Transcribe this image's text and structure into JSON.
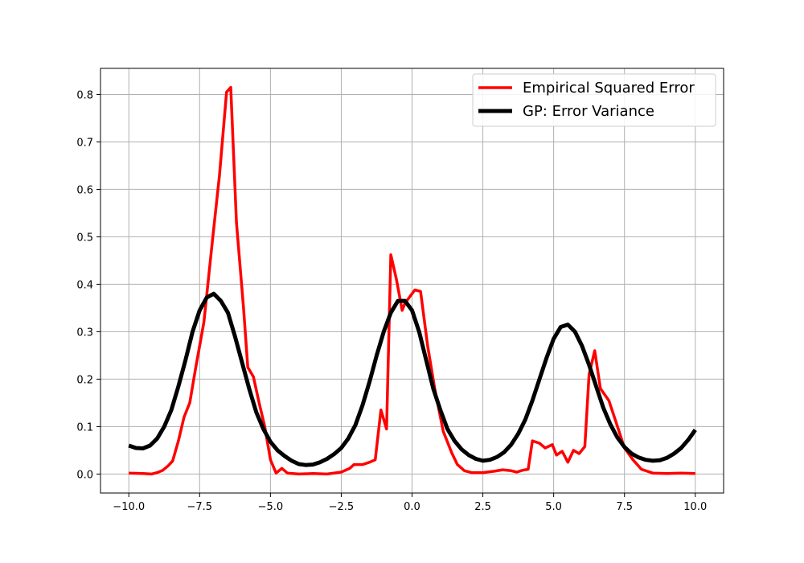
{
  "chart_data": {
    "type": "line",
    "title": "",
    "xlabel": "",
    "ylabel": "",
    "xlim": [
      -11,
      11
    ],
    "ylim": [
      -0.04,
      0.855
    ],
    "grid": true,
    "legend_position": "top-right",
    "xticks": [
      {
        "value": -10,
        "label": "−10.0"
      },
      {
        "value": -7.5,
        "label": "−7.5"
      },
      {
        "value": -5,
        "label": "−5.0"
      },
      {
        "value": -2.5,
        "label": "−2.5"
      },
      {
        "value": 0,
        "label": "0.0"
      },
      {
        "value": 2.5,
        "label": "2.5"
      },
      {
        "value": 5,
        "label": "5.0"
      },
      {
        "value": 7.5,
        "label": "7.5"
      },
      {
        "value": 10,
        "label": "10.0"
      }
    ],
    "yticks": [
      {
        "value": 0.0,
        "label": "0.0"
      },
      {
        "value": 0.1,
        "label": "0.1"
      },
      {
        "value": 0.2,
        "label": "0.2"
      },
      {
        "value": 0.3,
        "label": "0.3"
      },
      {
        "value": 0.4,
        "label": "0.4"
      },
      {
        "value": 0.5,
        "label": "0.5"
      },
      {
        "value": 0.6,
        "label": "0.6"
      },
      {
        "value": 0.7,
        "label": "0.7"
      },
      {
        "value": 0.8,
        "label": "0.8"
      }
    ],
    "series": [
      {
        "name": "Empirical Squared Error",
        "color": "#ff0000",
        "points": [
          [
            -10.0,
            0.002
          ],
          [
            -9.5,
            0.001
          ],
          [
            -9.2,
            0.0
          ],
          [
            -9.0,
            0.003
          ],
          [
            -8.8,
            0.008
          ],
          [
            -8.6,
            0.018
          ],
          [
            -8.45,
            0.028
          ],
          [
            -8.25,
            0.07
          ],
          [
            -8.05,
            0.12
          ],
          [
            -7.85,
            0.15
          ],
          [
            -7.65,
            0.22
          ],
          [
            -7.35,
            0.32
          ],
          [
            -7.05,
            0.49
          ],
          [
            -6.8,
            0.63
          ],
          [
            -6.55,
            0.805
          ],
          [
            -6.4,
            0.815
          ],
          [
            -6.2,
            0.53
          ],
          [
            -5.95,
            0.35
          ],
          [
            -5.8,
            0.225
          ],
          [
            -5.6,
            0.205
          ],
          [
            -5.4,
            0.15
          ],
          [
            -5.2,
            0.1
          ],
          [
            -5.0,
            0.03
          ],
          [
            -4.8,
            0.002
          ],
          [
            -4.6,
            0.012
          ],
          [
            -4.4,
            0.002
          ],
          [
            -4.0,
            0.0
          ],
          [
            -3.5,
            0.001
          ],
          [
            -3.0,
            0.0
          ],
          [
            -2.5,
            0.004
          ],
          [
            -2.2,
            0.012
          ],
          [
            -2.05,
            0.02
          ],
          [
            -1.75,
            0.02
          ],
          [
            -1.5,
            0.025
          ],
          [
            -1.3,
            0.03
          ],
          [
            -1.1,
            0.135
          ],
          [
            -0.9,
            0.095
          ],
          [
            -0.75,
            0.462
          ],
          [
            -0.55,
            0.41
          ],
          [
            -0.35,
            0.345
          ],
          [
            -0.25,
            0.36
          ],
          [
            0.1,
            0.388
          ],
          [
            0.3,
            0.385
          ],
          [
            0.55,
            0.27
          ],
          [
            0.8,
            0.18
          ],
          [
            1.1,
            0.09
          ],
          [
            1.4,
            0.045
          ],
          [
            1.6,
            0.02
          ],
          [
            1.85,
            0.007
          ],
          [
            2.1,
            0.003
          ],
          [
            2.5,
            0.003
          ],
          [
            2.9,
            0.006
          ],
          [
            3.2,
            0.009
          ],
          [
            3.5,
            0.007
          ],
          [
            3.7,
            0.004
          ],
          [
            3.9,
            0.008
          ],
          [
            4.1,
            0.01
          ],
          [
            4.25,
            0.07
          ],
          [
            4.5,
            0.065
          ],
          [
            4.7,
            0.055
          ],
          [
            4.95,
            0.062
          ],
          [
            5.1,
            0.04
          ],
          [
            5.3,
            0.048
          ],
          [
            5.5,
            0.025
          ],
          [
            5.7,
            0.05
          ],
          [
            5.9,
            0.043
          ],
          [
            6.1,
            0.058
          ],
          [
            6.25,
            0.21
          ],
          [
            6.45,
            0.26
          ],
          [
            6.65,
            0.18
          ],
          [
            6.95,
            0.155
          ],
          [
            7.2,
            0.11
          ],
          [
            7.5,
            0.055
          ],
          [
            7.8,
            0.03
          ],
          [
            8.1,
            0.01
          ],
          [
            8.5,
            0.002
          ],
          [
            9.0,
            0.001
          ],
          [
            9.5,
            0.002
          ],
          [
            10.0,
            0.001
          ]
        ]
      },
      {
        "name": "GP: Error Variance",
        "color": "#000000",
        "points": [
          [
            -10.0,
            0.06
          ],
          [
            -9.75,
            0.055
          ],
          [
            -9.5,
            0.054
          ],
          [
            -9.25,
            0.06
          ],
          [
            -9.0,
            0.075
          ],
          [
            -8.75,
            0.1
          ],
          [
            -8.5,
            0.135
          ],
          [
            -8.25,
            0.185
          ],
          [
            -8.0,
            0.24
          ],
          [
            -7.75,
            0.3
          ],
          [
            -7.5,
            0.345
          ],
          [
            -7.25,
            0.372
          ],
          [
            -7.0,
            0.38
          ],
          [
            -6.75,
            0.365
          ],
          [
            -6.5,
            0.34
          ],
          [
            -6.25,
            0.29
          ],
          [
            -6.0,
            0.235
          ],
          [
            -5.75,
            0.18
          ],
          [
            -5.5,
            0.13
          ],
          [
            -5.25,
            0.095
          ],
          [
            -5.0,
            0.068
          ],
          [
            -4.75,
            0.05
          ],
          [
            -4.5,
            0.038
          ],
          [
            -4.25,
            0.028
          ],
          [
            -4.0,
            0.021
          ],
          [
            -3.75,
            0.019
          ],
          [
            -3.5,
            0.02
          ],
          [
            -3.25,
            0.025
          ],
          [
            -3.0,
            0.032
          ],
          [
            -2.75,
            0.042
          ],
          [
            -2.5,
            0.055
          ],
          [
            -2.25,
            0.075
          ],
          [
            -2.0,
            0.103
          ],
          [
            -1.75,
            0.145
          ],
          [
            -1.5,
            0.195
          ],
          [
            -1.25,
            0.25
          ],
          [
            -1.0,
            0.3
          ],
          [
            -0.75,
            0.34
          ],
          [
            -0.5,
            0.365
          ],
          [
            -0.25,
            0.365
          ],
          [
            0.0,
            0.345
          ],
          [
            0.25,
            0.3
          ],
          [
            0.5,
            0.24
          ],
          [
            0.75,
            0.18
          ],
          [
            1.0,
            0.135
          ],
          [
            1.25,
            0.095
          ],
          [
            1.5,
            0.07
          ],
          [
            1.75,
            0.052
          ],
          [
            2.0,
            0.04
          ],
          [
            2.25,
            0.032
          ],
          [
            2.5,
            0.028
          ],
          [
            2.75,
            0.03
          ],
          [
            3.0,
            0.036
          ],
          [
            3.25,
            0.046
          ],
          [
            3.5,
            0.062
          ],
          [
            3.75,
            0.085
          ],
          [
            4.0,
            0.115
          ],
          [
            4.25,
            0.155
          ],
          [
            4.5,
            0.2
          ],
          [
            4.75,
            0.245
          ],
          [
            5.0,
            0.285
          ],
          [
            5.25,
            0.31
          ],
          [
            5.5,
            0.315
          ],
          [
            5.75,
            0.3
          ],
          [
            6.0,
            0.27
          ],
          [
            6.25,
            0.23
          ],
          [
            6.5,
            0.185
          ],
          [
            6.75,
            0.14
          ],
          [
            7.0,
            0.105
          ],
          [
            7.25,
            0.077
          ],
          [
            7.5,
            0.057
          ],
          [
            7.75,
            0.043
          ],
          [
            8.0,
            0.035
          ],
          [
            8.25,
            0.03
          ],
          [
            8.5,
            0.028
          ],
          [
            8.75,
            0.029
          ],
          [
            9.0,
            0.034
          ],
          [
            9.25,
            0.043
          ],
          [
            9.5,
            0.055
          ],
          [
            9.75,
            0.072
          ],
          [
            10.0,
            0.093
          ]
        ]
      }
    ]
  }
}
